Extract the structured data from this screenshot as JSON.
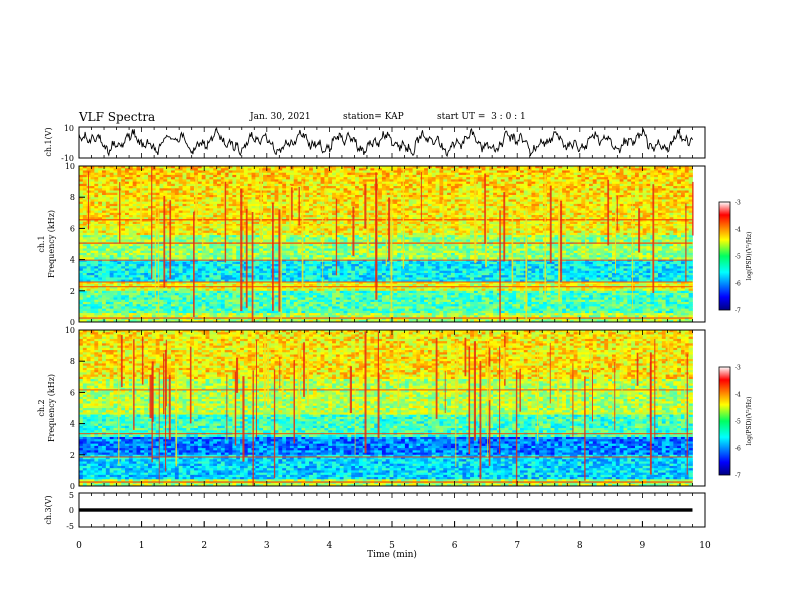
{
  "header": {
    "title": "VLF Spectra",
    "date": "Jan. 30, 2021",
    "station": "station= KAP",
    "start_ut": "start UT =  3 : 0 : 1"
  },
  "chart_data": [
    {
      "type": "line",
      "panel": "ch1-waveform",
      "ylabel": "ch.1(V)",
      "ylim": [
        -10,
        10
      ],
      "yticks": [
        -10,
        10
      ],
      "xlim": [
        0,
        10
      ],
      "series": [
        {
          "color": "#000000",
          "duration_min": 9.8
        }
      ]
    },
    {
      "type": "heatmap",
      "panel": "ch1-spectrogram",
      "ylabel": "ch.1 Frequency (kHz)",
      "ylim": [
        0,
        10
      ],
      "yticks": [
        0,
        2,
        4,
        6,
        8,
        10
      ],
      "xlim": [
        0,
        10
      ],
      "data_end_min": 9.8,
      "colorbar": {
        "label": "log(PSD)(V²/Hz)",
        "range": [
          -7,
          -3
        ],
        "ticks": [
          -3,
          -4,
          -5,
          -6,
          -7
        ]
      }
    },
    {
      "type": "heatmap",
      "panel": "ch2-spectrogram",
      "ylabel": "ch.2 Frequency (kHz)",
      "ylim": [
        0,
        10
      ],
      "yticks": [
        0,
        2,
        4,
        6,
        8,
        10
      ],
      "xlim": [
        0,
        10
      ],
      "data_end_min": 9.8,
      "colorbar": {
        "label": "log(PSD)(V²/Hz)",
        "range": [
          -7,
          -3
        ],
        "ticks": [
          -3,
          -4,
          -5,
          -6,
          -7
        ]
      }
    },
    {
      "type": "line",
      "panel": "ch3-waveform",
      "ylabel": "ch.3(V)",
      "ylim": [
        -5,
        5
      ],
      "yticks": [
        -5,
        0,
        5
      ],
      "xlim": [
        0,
        10
      ],
      "xlabel": "Time (min)",
      "xticks": [
        0,
        1,
        2,
        3,
        4,
        5,
        6,
        7,
        8,
        9,
        10
      ],
      "series": [
        {
          "color": "#000000",
          "duration_min": 9.8,
          "band": [
            -0.5,
            0.5
          ]
        }
      ]
    }
  ],
  "labels": {
    "ch1": "ch.1(V)",
    "ch1_freq_a": "ch.1",
    "ch1_freq_b": "Frequency (kHz)",
    "ch2_freq_a": "ch.2",
    "ch2_freq_b": "Frequency (kHz)",
    "ch3": "ch.3(V)",
    "xlabel": "Time (min)",
    "cbar_label": "log(PSD)(V²/Hz)"
  },
  "colorbar_ticks": [
    "-3",
    "-4",
    "-5",
    "-6",
    "-7"
  ],
  "y_ticks_wave1": [
    "10",
    "-10"
  ],
  "y_ticks_freq": [
    "10",
    "8",
    "6",
    "4",
    "2",
    "0"
  ],
  "y_ticks_wave3": [
    "5",
    "0",
    "-5"
  ],
  "x_ticks": [
    "0",
    "1",
    "2",
    "3",
    "4",
    "5",
    "6",
    "7",
    "8",
    "9",
    "10"
  ]
}
